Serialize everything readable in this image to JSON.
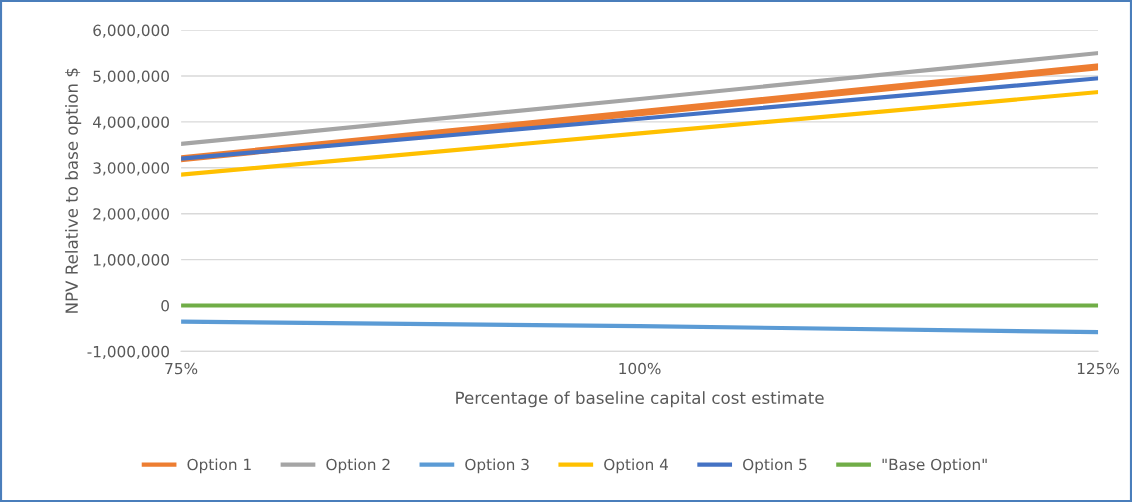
{
  "chart_data": {
    "type": "line",
    "xlabel": "Percentage of baseline capital cost estimate",
    "ylabel": "NPV Relative to base option $",
    "x": [
      75,
      100,
      125
    ],
    "series": [
      {
        "name": "Option 1",
        "color": "#ed7d31",
        "values": [
          3200000,
          4200000,
          5200000
        ]
      },
      {
        "name": "Option 2",
        "color": "#a5a5a5",
        "values": [
          3520000,
          4500000,
          5500000
        ]
      },
      {
        "name": "Option 3",
        "color": "#5b9bd5",
        "values": [
          -350000,
          -450000,
          -580000
        ]
      },
      {
        "name": "Option 4",
        "color": "#ffc000",
        "values": [
          2850000,
          3750000,
          4650000
        ]
      },
      {
        "name": "Option 5",
        "color": "#4472c4",
        "values": [
          3200000,
          4070000,
          4950000
        ]
      },
      {
        "name": "\"Base Option\"",
        "color": "#70ad47",
        "values": [
          0,
          0,
          0
        ]
      }
    ],
    "xlim": [
      75,
      125
    ],
    "xticks": [
      {
        "value": 75,
        "label": "75%"
      },
      {
        "value": 100,
        "label": "100%"
      },
      {
        "value": 125,
        "label": "125%"
      }
    ],
    "ylim": [
      -1000000,
      6000000
    ],
    "yticks": [
      {
        "value": -1000000,
        "label": "-1,000,000"
      },
      {
        "value": 0,
        "label": "0"
      },
      {
        "value": 1000000,
        "label": "1,000,000"
      },
      {
        "value": 2000000,
        "label": "2,000,000"
      },
      {
        "value": 3000000,
        "label": "3,000,000"
      },
      {
        "value": 4000000,
        "label": "4,000,000"
      },
      {
        "value": 5000000,
        "label": "5,000,000"
      },
      {
        "value": 6000000,
        "label": "6,000,000"
      }
    ],
    "grid": "y",
    "legend": "bottom",
    "marker": "none",
    "line_style": "solid"
  }
}
